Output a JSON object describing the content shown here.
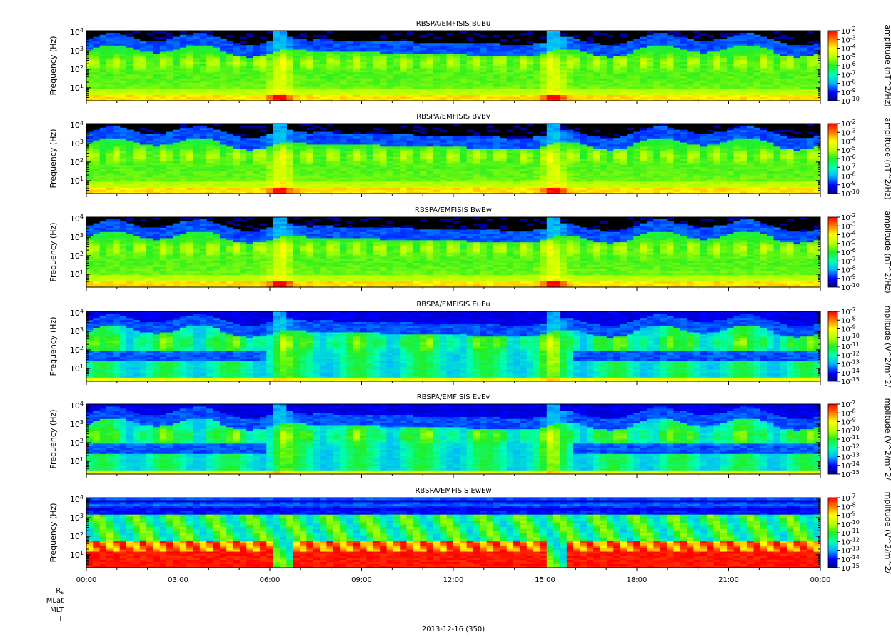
{
  "chart_data": [
    {
      "type": "heatmap",
      "title": "RBSPA/EMFISIS  BuBu",
      "ylabel": "Frequency (Hz)",
      "yscale": "log",
      "ylim": [
        2,
        12000
      ],
      "yticks": [
        "10^4",
        "10^3",
        "10^2",
        "10^1"
      ],
      "zlabel": "amplitude (nT^2/Hz)",
      "zscale": "log",
      "zlim": [
        1e-10,
        0.01
      ],
      "zticks": [
        "10^-2",
        "10^-3",
        "10^-4",
        "10^-5",
        "10^-6",
        "10^-7",
        "10^-8",
        "10^-9",
        "10^-10"
      ],
      "kind": "B"
    },
    {
      "type": "heatmap",
      "title": "RBSPA/EMFISIS  BvBv",
      "ylabel": "Frequency (Hz)",
      "yscale": "log",
      "ylim": [
        2,
        12000
      ],
      "yticks": [
        "10^4",
        "10^3",
        "10^2",
        "10^1"
      ],
      "zlabel": "amplitude (nT^2/Hz)",
      "zscale": "log",
      "zlim": [
        1e-10,
        0.01
      ],
      "zticks": [
        "10^-2",
        "10^-3",
        "10^-4",
        "10^-5",
        "10^-6",
        "10^-7",
        "10^-8",
        "10^-9",
        "10^-10"
      ],
      "kind": "B"
    },
    {
      "type": "heatmap",
      "title": "RBSPA/EMFISIS  BwBw",
      "ylabel": "Frequency (Hz)",
      "yscale": "log",
      "ylim": [
        2,
        12000
      ],
      "yticks": [
        "10^4",
        "10^3",
        "10^2",
        "10^1"
      ],
      "zlabel": "amplitude (nT^2/Hz)",
      "zscale": "log",
      "zlim": [
        1e-10,
        0.01
      ],
      "zticks": [
        "10^-2",
        "10^-3",
        "10^-4",
        "10^-5",
        "10^-6",
        "10^-7",
        "10^-8",
        "10^-9",
        "10^-10"
      ],
      "kind": "B"
    },
    {
      "type": "heatmap",
      "title": "RBSPA/EMFISIS  EuEu",
      "ylabel": "Frequency (Hz)",
      "yscale": "log",
      "ylim": [
        2,
        12000
      ],
      "yticks": [
        "10^4",
        "10^3",
        "10^2",
        "10^1"
      ],
      "zlabel": "mplitude (V^2/m^2/",
      "zscale": "log",
      "zlim": [
        1e-15,
        1e-07
      ],
      "zticks": [
        "10^-7",
        "10^-8",
        "10^-9",
        "10^-10",
        "10^-11",
        "10^-12",
        "10^-13",
        "10^-14",
        "10^-15"
      ],
      "kind": "E"
    },
    {
      "type": "heatmap",
      "title": "RBSPA/EMFISIS  EvEv",
      "ylabel": "Frequency (Hz)",
      "yscale": "log",
      "ylim": [
        2,
        12000
      ],
      "yticks": [
        "10^4",
        "10^3",
        "10^2",
        "10^1"
      ],
      "zlabel": "mplitude (V^2/m^2/",
      "zscale": "log",
      "zlim": [
        1e-15,
        1e-07
      ],
      "zticks": [
        "10^-7",
        "10^-8",
        "10^-9",
        "10^-10",
        "10^-11",
        "10^-12",
        "10^-13",
        "10^-14",
        "10^-15"
      ],
      "kind": "E"
    },
    {
      "type": "heatmap",
      "title": "RBSPA/EMFISIS  EwEw",
      "ylabel": "Frequency (Hz)",
      "yscale": "log",
      "ylim": [
        2,
        12000
      ],
      "yticks": [
        "10^4",
        "10^3",
        "10^2",
        "10^1"
      ],
      "zlabel": "mplitude (V^2/m^2/",
      "zscale": "log",
      "zlim": [
        1e-15,
        1e-07
      ],
      "zticks": [
        "10^-7",
        "10^-8",
        "10^-9",
        "10^-10",
        "10^-11",
        "10^-12",
        "10^-13",
        "10^-14",
        "10^-15"
      ],
      "kind": "Ew"
    }
  ],
  "x_axis": {
    "ticks": [
      "00:00",
      "03:00",
      "06:00",
      "09:00",
      "12:00",
      "15:00",
      "18:00",
      "21:00",
      "00:00"
    ],
    "date_label": "2013-12-16 (350)",
    "ephemeris_labels": [
      "R",
      "MLat",
      "MLT",
      "L"
    ],
    "ephemeris_sub": "E"
  },
  "colors": {
    "colormap": [
      "#000080",
      "#0000ff",
      "#00b4ff",
      "#00ffb4",
      "#22ee22",
      "#b4ff00",
      "#ffff00",
      "#ff8000",
      "#ff0000"
    ],
    "background": "#000000"
  }
}
